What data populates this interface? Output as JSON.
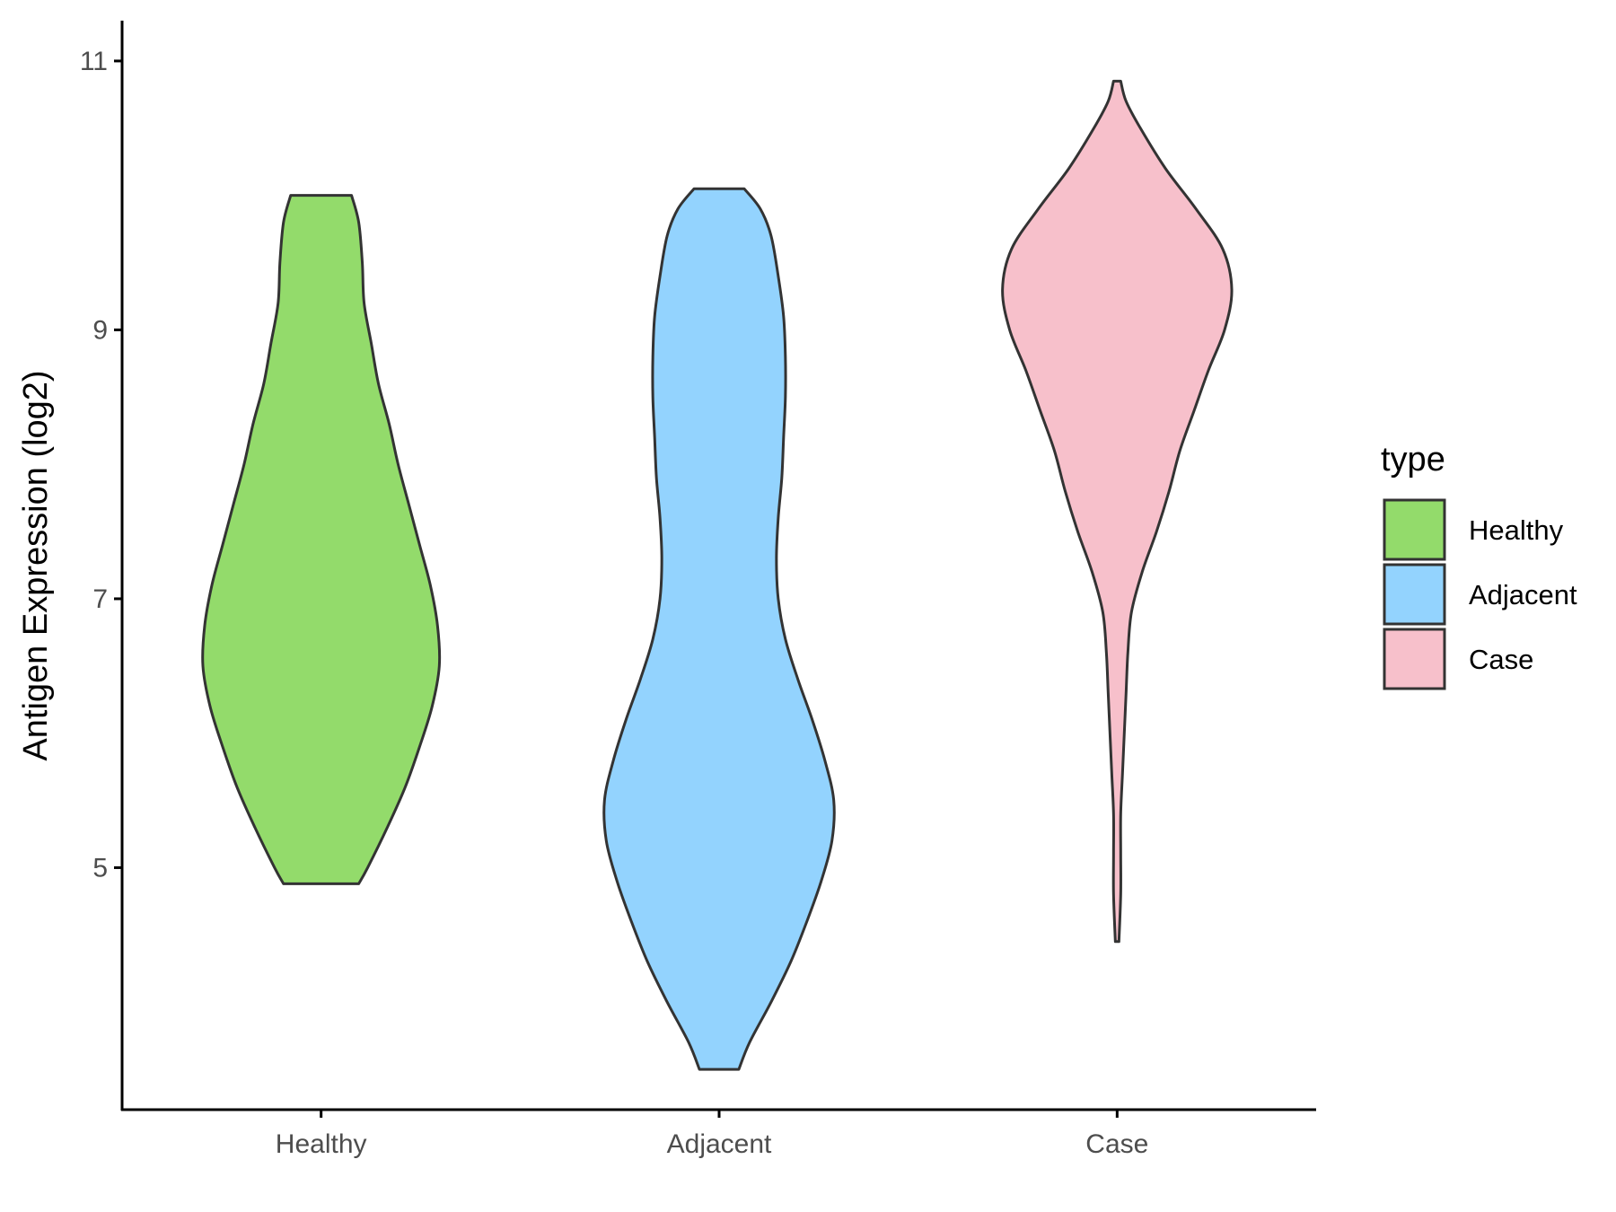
{
  "chart_data": {
    "type": "violin",
    "title": "",
    "xlabel": "",
    "ylabel": "Antigen Expression (log2)",
    "ylim": [
      3.2,
      11.3
    ],
    "yticks": [
      5,
      7,
      9,
      11
    ],
    "ytick_labels": [
      "5",
      "7",
      "9",
      "11"
    ],
    "categories": [
      "Healthy",
      "Adjacent",
      "Case"
    ],
    "grid": false,
    "legend": {
      "title": "type",
      "position": "right",
      "entries": [
        "Healthy",
        "Adjacent",
        "Case"
      ]
    },
    "colors": {
      "Healthy": "#93DB6B",
      "Adjacent": "#93D3FE",
      "Case": "#F7C0CB",
      "outline": "#333333",
      "axis": "#000000",
      "tick_text": "#4D4D4D"
    },
    "series": [
      {
        "category": "Healthy",
        "min": 4.88,
        "max": 10.0,
        "density": [
          [
            4.88,
            0.21
          ],
          [
            5.0,
            0.26
          ],
          [
            5.3,
            0.37
          ],
          [
            5.6,
            0.47
          ],
          [
            5.9,
            0.55
          ],
          [
            6.2,
            0.62
          ],
          [
            6.5,
            0.66
          ],
          [
            6.8,
            0.65
          ],
          [
            7.1,
            0.61
          ],
          [
            7.4,
            0.55
          ],
          [
            7.7,
            0.49
          ],
          [
            8.0,
            0.43
          ],
          [
            8.3,
            0.38
          ],
          [
            8.6,
            0.32
          ],
          [
            8.9,
            0.28
          ],
          [
            9.2,
            0.24
          ],
          [
            9.5,
            0.23
          ],
          [
            9.8,
            0.21
          ],
          [
            10.0,
            0.17
          ]
        ]
      },
      {
        "category": "Adjacent",
        "min": 3.5,
        "max": 10.05,
        "density": [
          [
            3.5,
            0.11
          ],
          [
            3.7,
            0.17
          ],
          [
            4.0,
            0.29
          ],
          [
            4.3,
            0.4
          ],
          [
            4.6,
            0.49
          ],
          [
            4.9,
            0.57
          ],
          [
            5.2,
            0.63
          ],
          [
            5.5,
            0.64
          ],
          [
            5.8,
            0.59
          ],
          [
            6.1,
            0.52
          ],
          [
            6.4,
            0.44
          ],
          [
            6.7,
            0.37
          ],
          [
            7.0,
            0.33
          ],
          [
            7.3,
            0.32
          ],
          [
            7.6,
            0.33
          ],
          [
            7.9,
            0.35
          ],
          [
            8.2,
            0.36
          ],
          [
            8.5,
            0.37
          ],
          [
            8.8,
            0.37
          ],
          [
            9.1,
            0.36
          ],
          [
            9.4,
            0.33
          ],
          [
            9.7,
            0.29
          ],
          [
            9.9,
            0.23
          ],
          [
            10.05,
            0.14
          ]
        ]
      },
      {
        "category": "Case",
        "min": 4.45,
        "max": 10.85,
        "density": [
          [
            4.45,
            0.01
          ],
          [
            4.8,
            0.02
          ],
          [
            5.1,
            0.02
          ],
          [
            5.4,
            0.02
          ],
          [
            5.7,
            0.03
          ],
          [
            6.0,
            0.04
          ],
          [
            6.3,
            0.05
          ],
          [
            6.6,
            0.06
          ],
          [
            6.9,
            0.08
          ],
          [
            7.2,
            0.14
          ],
          [
            7.5,
            0.22
          ],
          [
            7.8,
            0.29
          ],
          [
            8.1,
            0.35
          ],
          [
            8.4,
            0.43
          ],
          [
            8.7,
            0.51
          ],
          [
            9.0,
            0.6
          ],
          [
            9.3,
            0.64
          ],
          [
            9.6,
            0.59
          ],
          [
            9.9,
            0.44
          ],
          [
            10.2,
            0.27
          ],
          [
            10.5,
            0.13
          ],
          [
            10.7,
            0.05
          ],
          [
            10.85,
            0.02
          ]
        ]
      }
    ]
  }
}
